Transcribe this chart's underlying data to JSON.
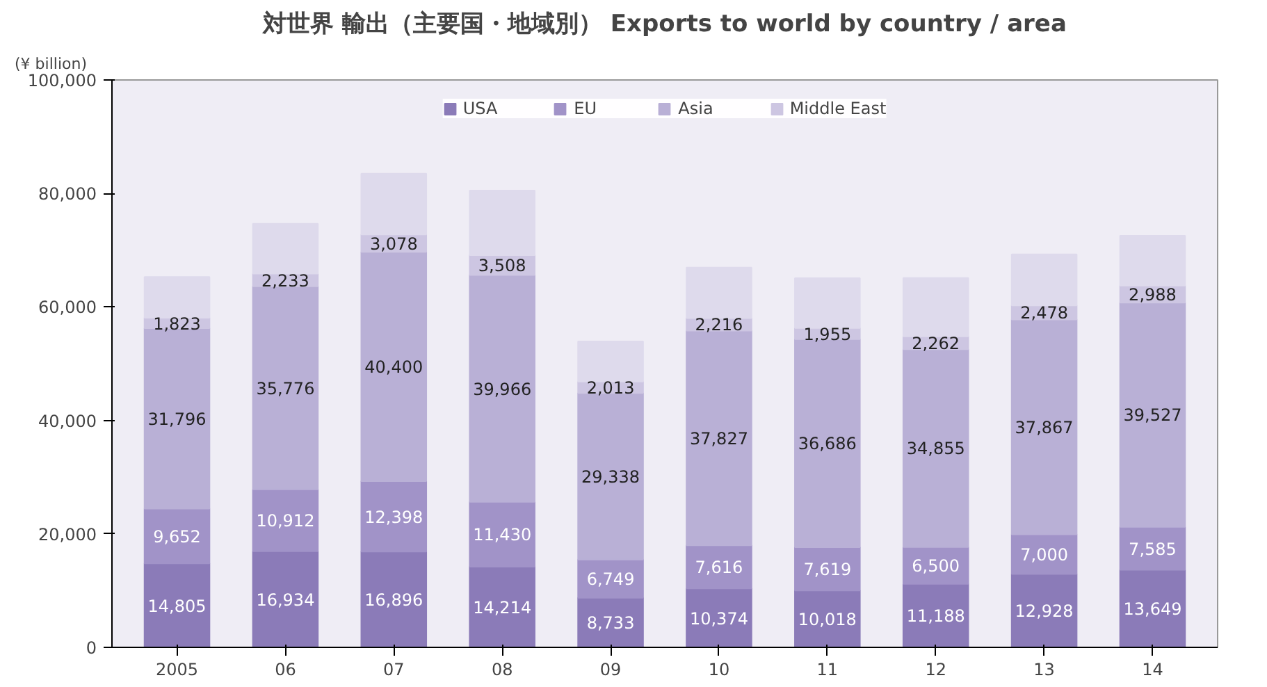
{
  "chart_data": {
    "type": "bar",
    "stacked": true,
    "title": "対世界 輸出（主要国・地域別） Exports to world by country / area",
    "ylabel": "(¥ billion)",
    "categories": [
      "2005",
      "06",
      "07",
      "08",
      "09",
      "10",
      "11",
      "12",
      "13",
      "14"
    ],
    "ylim": [
      0,
      100000
    ],
    "yticks": [
      {
        "value": 0,
        "label": "0"
      },
      {
        "value": 20000,
        "label": "20,000"
      },
      {
        "value": 40000,
        "label": "40,000"
      },
      {
        "value": 60000,
        "label": "60,000"
      },
      {
        "value": 80000,
        "label": "80,000"
      },
      {
        "value": 100000,
        "label": "100,000"
      }
    ],
    "grid": false,
    "legend": "top",
    "series": [
      {
        "name": "USA",
        "color": "#8b7bb8",
        "values": [
          14805,
          16934,
          16896,
          14214,
          8733,
          10374,
          10018,
          11188,
          12928,
          13649
        ],
        "value_labels": [
          "14,805",
          "16,934",
          "16,896",
          "14,214",
          "8,733",
          "10,374",
          "10,018",
          "11,188",
          "12,928",
          "13,649"
        ]
      },
      {
        "name": "EU",
        "color": "#a193c8",
        "values": [
          9652,
          10912,
          12398,
          11430,
          6749,
          7616,
          7619,
          6500,
          7000,
          7585
        ],
        "value_labels": [
          "9,652",
          "10,912",
          "12,398",
          "11,430",
          "6,749",
          "7,616",
          "7,619",
          "6,500",
          "7,000",
          "7,585"
        ]
      },
      {
        "name": "Asia",
        "color": "#b9b0d6",
        "values": [
          31796,
          35776,
          40400,
          39966,
          29338,
          37827,
          36686,
          34855,
          37867,
          39527
        ],
        "value_labels": [
          "31,796",
          "35,776",
          "40,400",
          "39,966",
          "29,338",
          "37,827",
          "36,686",
          "34,855",
          "37,867",
          "39,527"
        ]
      },
      {
        "name": "Middle East",
        "color": "#cdc6e2",
        "values": [
          1823,
          2233,
          3078,
          3508,
          2013,
          2216,
          1955,
          2262,
          2478,
          2988
        ],
        "value_labels": [
          "1,823",
          "2,233",
          "3,078",
          "3,508",
          "2,013",
          "2,216",
          "1,955",
          "2,262",
          "2,478",
          "2,988"
        ]
      },
      {
        "color": "#dedaec",
        "values": [
          7200,
          8800,
          10700,
          11400,
          7100,
          8900,
          8800,
          10300,
          9000,
          8800
        ]
      }
    ]
  }
}
